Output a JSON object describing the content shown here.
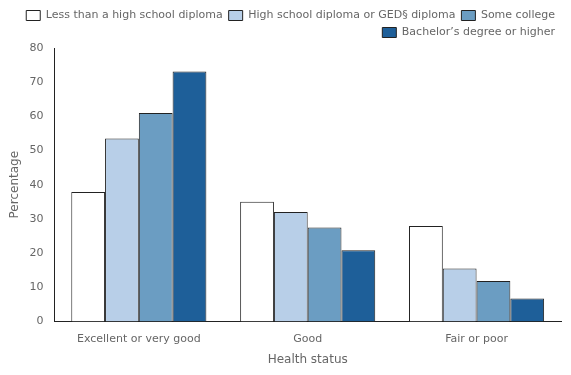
{
  "chart_data": {
    "type": "bar",
    "categories": [
      "Excellent or very good",
      "Good",
      "Fair or poor"
    ],
    "series": [
      {
        "name": "Less than a high school diploma",
        "color": "#ffffff",
        "values": [
          37.9,
          35.0,
          27.9
        ]
      },
      {
        "name": "High school diploma or GED§ diploma",
        "color": "#b8cfe8",
        "values": [
          53.5,
          32.0,
          15.5
        ]
      },
      {
        "name": "Some college",
        "color": "#6b9dc2",
        "values": [
          61.0,
          27.5,
          11.8
        ]
      },
      {
        "name": "Bachelor’s degree or higher",
        "color": "#1e5f99",
        "values": [
          73.1,
          20.8,
          6.7
        ]
      }
    ],
    "xlabel": "Health status",
    "ylabel": "Percentage",
    "ylim": [
      0,
      80
    ],
    "yticks": [
      0,
      10,
      20,
      30,
      40,
      50,
      60,
      70,
      80
    ],
    "grid": false,
    "legend": "upper right"
  }
}
